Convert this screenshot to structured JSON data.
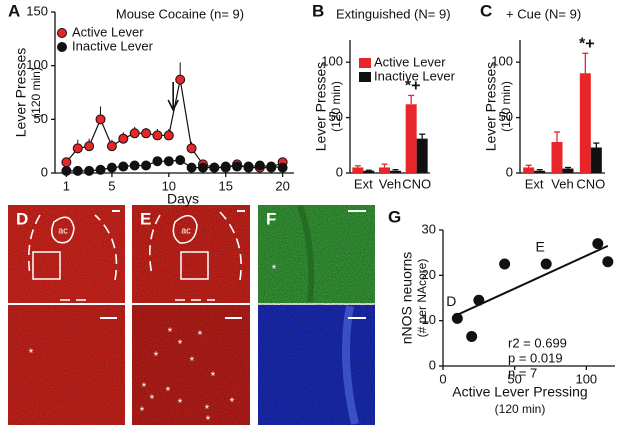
{
  "chart_data": [
    {
      "type": "line",
      "label": "A",
      "title": "Mouse Cocaine (n= 9)",
      "xlabel": "Days",
      "ylabel": [
        "Lever Presses",
        "(120 min)"
      ],
      "x": [
        1,
        2,
        3,
        4,
        5,
        6,
        7,
        8,
        9,
        10,
        11,
        12,
        13,
        14,
        15,
        16,
        17,
        18,
        19,
        20
      ],
      "series": [
        {
          "name": "Active Lever",
          "color": "#e8262a",
          "values": [
            10,
            23,
            25,
            50,
            25,
            32,
            37,
            37,
            35,
            35,
            87,
            23,
            8,
            5,
            5,
            8,
            5,
            5,
            5,
            10
          ],
          "errors": [
            4,
            8,
            7,
            12,
            6,
            6,
            6,
            5,
            6,
            6,
            16,
            6,
            3,
            2,
            2,
            3,
            2,
            2,
            2,
            4
          ]
        },
        {
          "name": "Inactive Lever",
          "color": "#111111",
          "values": [
            2,
            2,
            2,
            3,
            5,
            6,
            7,
            7,
            11,
            11,
            12,
            5,
            5,
            5,
            6,
            6,
            6,
            7,
            6,
            5
          ],
          "errors": [
            1,
            1,
            1,
            1,
            1,
            1,
            2,
            2,
            4,
            4,
            4,
            1,
            1,
            1,
            1,
            1,
            1,
            1,
            1,
            1
          ]
        }
      ],
      "xlim": [
        0,
        21
      ],
      "xticks": [
        1,
        5,
        10,
        15,
        20
      ],
      "ylim": [
        0,
        150
      ],
      "yticks": [
        0,
        50,
        100,
        150
      ]
    },
    {
      "type": "bar",
      "label": "B",
      "title": "Extinguished (N= 9)",
      "ylabel": [
        "Lever Presses",
        "(120 min)"
      ],
      "categories": [
        "Ext",
        "Veh",
        "CNO"
      ],
      "series": [
        {
          "name": "Active Lever",
          "color": "#e8262a",
          "values": [
            5,
            5,
            62
          ],
          "errors": [
            1.5,
            3,
            8
          ]
        },
        {
          "name": "Inactive Lever",
          "color": "#111111",
          "values": [
            2,
            2,
            31
          ],
          "errors": [
            0.5,
            1,
            4
          ]
        }
      ],
      "annotation": "*+",
      "ylim": [
        0,
        120
      ],
      "yticks": [
        0,
        50,
        100
      ]
    },
    {
      "type": "bar",
      "label": "C",
      "title": "+ Cue (N= 9)",
      "ylabel": [
        "Lever Presses",
        "(120 min)"
      ],
      "categories": [
        "Ext",
        "Veh",
        "CNO"
      ],
      "series": [
        {
          "name": "Active Lever",
          "color": "#e8262a",
          "values": [
            5,
            28,
            90
          ],
          "errors": [
            2,
            9,
            18
          ]
        },
        {
          "name": "Inactive Lever",
          "color": "#111111",
          "values": [
            2,
            4,
            23
          ],
          "errors": [
            1,
            1,
            4
          ]
        }
      ],
      "annotation": "*+",
      "ylim": [
        0,
        120
      ],
      "yticks": [
        0,
        50,
        100
      ]
    },
    {
      "type": "scatter",
      "label": "G",
      "xlabel": [
        "Active Lever Pressing",
        "(120 min)"
      ],
      "ylabel": [
        "nNOS neuorns",
        "(# per NAcore)"
      ],
      "x": [
        10,
        20,
        25,
        43,
        72,
        108,
        115
      ],
      "values": [
        10.5,
        6.5,
        14.5,
        22.5,
        22.5,
        27,
        23
      ],
      "point_labels": [
        "D",
        null,
        null,
        null,
        "E",
        null,
        null
      ],
      "fit": {
        "x": [
          8,
          115
        ],
        "y": [
          11,
          26.5
        ]
      },
      "stats": [
        "r2 = 0.699",
        "p = 0.019",
        "n = 7"
      ],
      "xlim": [
        0,
        120
      ],
      "xticks": [
        0,
        50,
        100
      ],
      "ylim": [
        0,
        30
      ],
      "yticks": [
        0,
        10,
        20,
        30
      ]
    }
  ],
  "images": {
    "panels": [
      {
        "label": "D",
        "region": "ac"
      },
      {
        "label": "E",
        "region": "ac"
      },
      {
        "label": "F"
      }
    ],
    "asterisk": "*"
  }
}
